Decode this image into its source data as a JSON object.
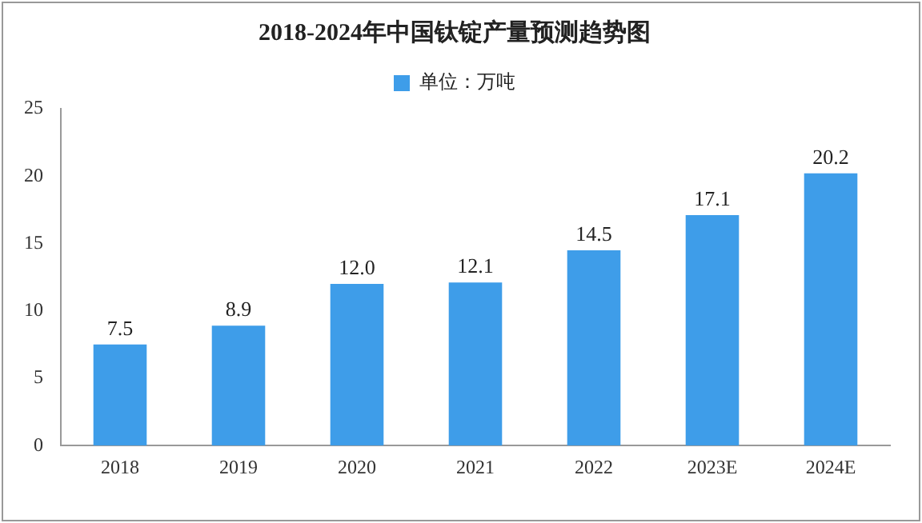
{
  "chart_data": {
    "type": "bar",
    "title": "2018-2024年中国钛锭产量预测趋势图",
    "categories": [
      "2018",
      "2019",
      "2020",
      "2021",
      "2022",
      "2023E",
      "2024E"
    ],
    "series": [
      {
        "name": "单位：万吨",
        "color": "#3e9de9",
        "values": [
          7.5,
          8.9,
          12.0,
          12.1,
          14.5,
          17.1,
          20.2
        ],
        "value_labels": [
          "7.5",
          "8.9",
          "12.0",
          "12.1",
          "14.5",
          "17.1",
          "20.2"
        ]
      }
    ],
    "ylim": [
      0,
      25
    ],
    "yticks": [
      0,
      5,
      10,
      15,
      20,
      25
    ],
    "grid": false,
    "legend": "top"
  }
}
